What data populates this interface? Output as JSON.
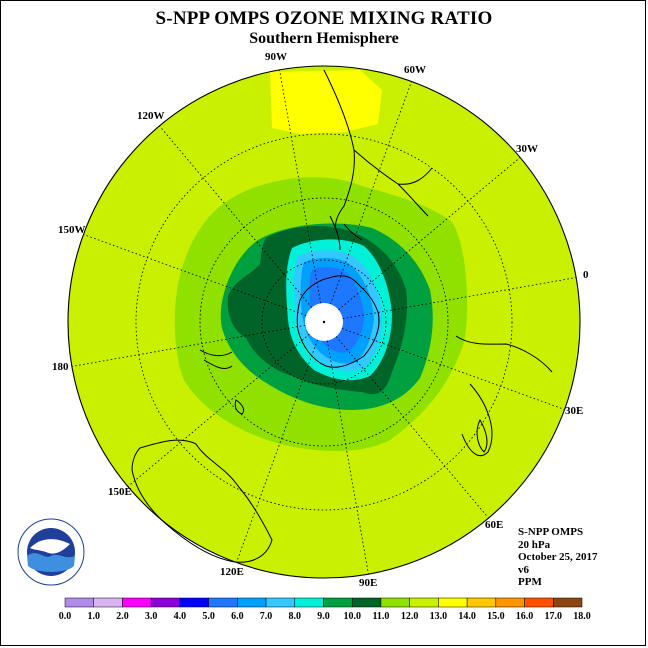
{
  "title": "S-NPP OMPS OZONE MIXING RATIO",
  "subtitle": "Southern Hemisphere",
  "longitude_labels": [
    "90W",
    "60W",
    "30W",
    "0",
    "30E",
    "60E",
    "90E",
    "120E",
    "150E",
    "180",
    "150W",
    "120W"
  ],
  "info": {
    "instrument": "S-NPP OMPS",
    "level": "20 hPa",
    "date": "October 25, 2017",
    "version": "v6",
    "units": "PPM"
  },
  "logo": {
    "text": "NOAA",
    "ring_text": "NATIONAL OCEANIC AND ATMOSPHERIC ADMINISTRATION · U.S. DEPARTMENT OF COMMERCE"
  },
  "colorbar": {
    "labels": [
      "0.0",
      "1.0",
      "2.0",
      "3.0",
      "4.0",
      "5.0",
      "6.0",
      "7.0",
      "8.0",
      "9.0",
      "10.0",
      "11.0",
      "12.0",
      "13.0",
      "14.0",
      "15.0",
      "16.0",
      "17.0",
      "18.0"
    ],
    "colors": [
      "#b08ce8",
      "#d8b4f0",
      "#ff00ff",
      "#8a00d8",
      "#0000ff",
      "#1e78ff",
      "#00a0ff",
      "#33c8ff",
      "#00f0d8",
      "#00a040",
      "#006428",
      "#90e000",
      "#c8f000",
      "#ffff00",
      "#ffc800",
      "#ff9600",
      "#ff5000",
      "#ff0000",
      "#8b4513"
    ]
  },
  "colors": {
    "background_field": "#c8f000",
    "ring_11": "#90e000",
    "ring_10": "#00a040",
    "ring_9": "#006428",
    "ring_8": "#00f0d8",
    "ring_7": "#33c8ff",
    "ring_6": "#00a0ff",
    "ring_5": "#1e78ff",
    "high_13": "#ffff00",
    "pole_missing": "#ffffff",
    "coastline": "#000000"
  }
}
